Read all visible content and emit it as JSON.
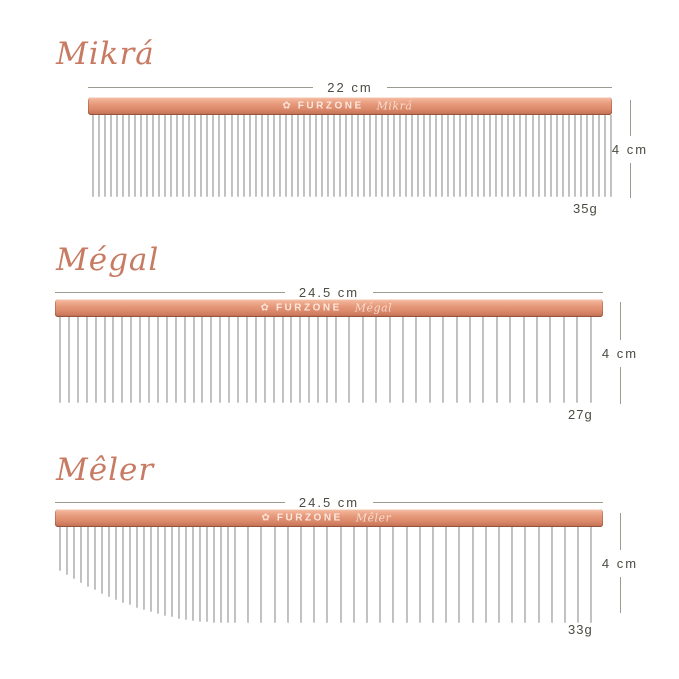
{
  "combs": [
    {
      "title": "Mikrá",
      "width_label": "22 cm",
      "height_label": "4 cm",
      "weight_label": "35g",
      "spine_brand": "FURZONE",
      "spine_model": "Mikrá",
      "teeth_pattern": "uniform fine spacing, uniform length"
    },
    {
      "title": "Mégal",
      "width_label": "24.5 cm",
      "height_label": "4 cm",
      "weight_label": "27g",
      "spine_brand": "FURZONE",
      "spine_model": "Mégal",
      "teeth_pattern": "fine spacing left half, coarse spacing right half, uniform length"
    },
    {
      "title": "Mêler",
      "width_label": "24.5 cm",
      "height_label": "4 cm",
      "weight_label": "33g",
      "spine_brand": "FURZONE",
      "spine_model": "Mêler",
      "teeth_pattern": "graduated short-to-long curved fine section left, coarse full-length section right"
    }
  ],
  "icons": {
    "brand_logo": "flower-icon",
    "brand_logo_glyph": "✿"
  },
  "colors": {
    "background": "#ffffff",
    "title_script": "#c87b63",
    "spine_rose_gold_light": "#f6c6ae",
    "spine_rose_gold_mid": "#e59879",
    "spine_rose_gold_dark": "#b76a50",
    "tooth_metal": "#c6c6c6",
    "dimension_line": "#9d9b90",
    "dimension_text": "#4c4b42"
  }
}
